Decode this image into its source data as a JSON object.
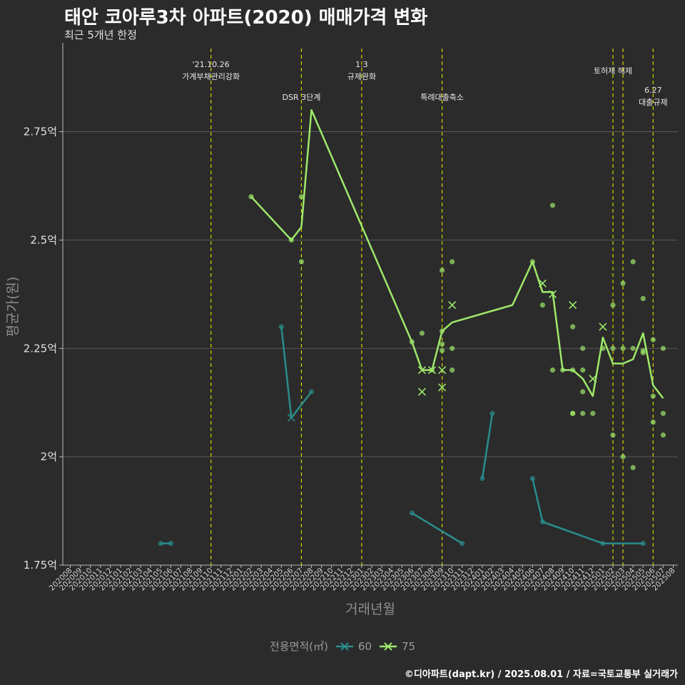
{
  "title": "태안 코아루3차 아파트(2020) 매매가격 변화",
  "subtitle": "최근 5개년 한정",
  "caption": "©디아파트(dapt.kr) / 2025.08.01 / 자료=국토교통부 실거래가",
  "legend": {
    "title": "전용면적(㎡)",
    "items": [
      "60",
      "75"
    ]
  },
  "colors": {
    "s60": "#2a8c8c",
    "s75": "#9ee86a",
    "event": "#d4d400",
    "grid": "#5a5a5a",
    "bg": "#2b2b2b"
  },
  "chart_data": {
    "type": "line",
    "xlabel": "거래년월",
    "ylabel": "평균가(원)",
    "ylim": [
      1.75,
      2.955
    ],
    "y_ticks": [
      1.75,
      2.0,
      2.25,
      2.5,
      2.75
    ],
    "y_tick_labels": [
      "1.75억",
      "2억",
      "2.25억",
      "2.5억",
      "2.75억"
    ],
    "x_categories": [
      "202008",
      "202009",
      "202010",
      "202011",
      "202012",
      "202101",
      "202102",
      "202103",
      "202104",
      "202105",
      "202106",
      "202107",
      "202108",
      "202109",
      "202110",
      "202111",
      "202112",
      "202201",
      "202202",
      "202203",
      "202204",
      "202205",
      "202206",
      "202207",
      "202208",
      "202209",
      "202210",
      "202211",
      "202212",
      "202301",
      "202302",
      "202303",
      "202304",
      "202305",
      "202306",
      "202307",
      "202308",
      "202309",
      "202310",
      "202311",
      "202312",
      "202401",
      "202402",
      "202403",
      "202404",
      "202405",
      "202406",
      "202407",
      "202408",
      "202409",
      "202410",
      "202411",
      "202412",
      "202501",
      "202502",
      "202503",
      "202504",
      "202505",
      "202506",
      "202507",
      "202508"
    ],
    "events": [
      {
        "x": "202110",
        "label": [
          "'21.10.26",
          "가계부채관리강화"
        ],
        "tier": 1
      },
      {
        "x": "202207",
        "label": [
          "DSR 3단계"
        ],
        "tier": 2
      },
      {
        "x": "202301",
        "label": [
          "1.3",
          "규제완화"
        ],
        "tier": 1
      },
      {
        "x": "202309",
        "label": [
          "특례대출축소"
        ],
        "tier": 2
      },
      {
        "x": "202502",
        "label": [
          "토허제 해제"
        ],
        "tier": 1
      },
      {
        "x": "202503",
        "label": [],
        "tier": 1
      },
      {
        "x": "202506",
        "label": [
          "6.27",
          "대출규제"
        ],
        "tier": 3
      }
    ],
    "series": [
      {
        "name": "60",
        "color": "#2a8c8c",
        "line_segments": [
          [
            [
              "202105",
              1.8
            ],
            [
              "202106",
              1.8
            ]
          ],
          [
            [
              "202205",
              2.3
            ],
            [
              "202206",
              2.09
            ],
            [
              "202208",
              2.15
            ]
          ],
          [
            [
              "202306",
              1.87
            ],
            [
              "202311",
              1.8
            ]
          ],
          [
            [
              "202401",
              1.95
            ],
            [
              "202402",
              2.1
            ]
          ],
          [
            [
              "202406",
              1.95
            ],
            [
              "202407",
              1.85
            ],
            [
              "202501",
              1.8
            ],
            [
              "202505",
              1.8
            ]
          ]
        ],
        "points": [
          [
            "202105",
            1.8
          ],
          [
            "202106",
            1.8
          ],
          [
            "202205",
            2.3
          ],
          [
            "202208",
            2.15
          ],
          [
            "202306",
            1.87
          ],
          [
            "202311",
            1.8
          ],
          [
            "202401",
            1.95
          ],
          [
            "202402",
            2.1
          ],
          [
            "202406",
            1.95
          ],
          [
            "202407",
            1.85
          ],
          [
            "202501",
            1.8
          ],
          [
            "202505",
            1.8
          ]
        ],
        "cross_points": [
          [
            "202206",
            2.09
          ]
        ]
      },
      {
        "name": "75",
        "color": "#9ee86a",
        "line": [
          [
            "202202",
            2.6
          ],
          [
            "202206",
            2.5
          ],
          [
            "202207",
            2.53
          ],
          [
            "202208",
            2.8
          ],
          [
            "202306",
            2.265
          ],
          [
            "202307",
            2.2
          ],
          [
            "202308",
            2.2
          ],
          [
            "202309",
            2.29
          ],
          [
            "202310",
            2.31
          ],
          [
            "202404",
            2.35
          ],
          [
            "202406",
            2.45
          ],
          [
            "202407",
            2.38
          ],
          [
            "202408",
            2.38
          ],
          [
            "202409",
            2.2
          ],
          [
            "202410",
            2.2
          ],
          [
            "202411",
            2.18
          ],
          [
            "202412",
            2.14
          ],
          [
            "202501",
            2.275
          ],
          [
            "202502",
            2.215
          ],
          [
            "202503",
            2.215
          ],
          [
            "202504",
            2.225
          ],
          [
            "202505",
            2.285
          ],
          [
            "202506",
            2.165
          ],
          [
            "202507",
            2.135
          ]
        ],
        "points": [
          [
            "202202",
            2.6
          ],
          [
            "202206",
            2.5
          ],
          [
            "202207",
            2.6
          ],
          [
            "202207",
            2.45
          ],
          [
            "202306",
            2.265
          ],
          [
            "202307",
            2.285
          ],
          [
            "202308",
            2.2
          ],
          [
            "202309",
            2.29
          ],
          [
            "202309",
            2.26
          ],
          [
            "202309",
            2.245
          ],
          [
            "202309",
            2.43
          ],
          [
            "202310",
            2.45
          ],
          [
            "202310",
            2.25
          ],
          [
            "202310",
            2.2
          ],
          [
            "202406",
            2.45
          ],
          [
            "202407",
            2.35
          ],
          [
            "202408",
            2.58
          ],
          [
            "202408",
            2.2
          ],
          [
            "202409",
            2.2
          ],
          [
            "202410",
            2.3
          ],
          [
            "202410",
            2.2
          ],
          [
            "202410",
            2.1
          ],
          [
            "202410",
            2.1
          ],
          [
            "202411",
            2.25
          ],
          [
            "202411",
            2.2
          ],
          [
            "202411",
            2.15
          ],
          [
            "202411",
            2.1
          ],
          [
            "202412",
            2.1
          ],
          [
            "202501",
            2.25
          ],
          [
            "202502",
            2.35
          ],
          [
            "202502",
            2.25
          ],
          [
            "202502",
            2.05
          ],
          [
            "202503",
            2.4
          ],
          [
            "202503",
            2.25
          ],
          [
            "202503",
            2.0
          ],
          [
            "202504",
            2.45
          ],
          [
            "202504",
            2.25
          ],
          [
            "202504",
            1.975
          ],
          [
            "202505",
            2.365
          ],
          [
            "202505",
            2.245
          ],
          [
            "202505",
            2.24
          ],
          [
            "202506",
            2.27
          ],
          [
            "202506",
            2.14
          ],
          [
            "202506",
            2.08
          ],
          [
            "202507",
            2.25
          ],
          [
            "202507",
            2.1
          ],
          [
            "202507",
            2.05
          ]
        ],
        "cross_points": [
          [
            "202307",
            2.2
          ],
          [
            "202307",
            2.15
          ],
          [
            "202308",
            2.2
          ],
          [
            "202309",
            2.2
          ],
          [
            "202309",
            2.16
          ],
          [
            "202310",
            2.35
          ],
          [
            "202407",
            2.4
          ],
          [
            "202408",
            2.375
          ],
          [
            "202410",
            2.35
          ],
          [
            "202412",
            2.18
          ],
          [
            "202501",
            2.3
          ]
        ]
      }
    ]
  }
}
